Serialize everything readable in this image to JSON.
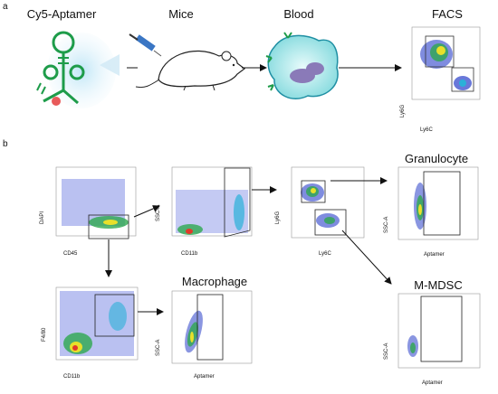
{
  "panel_a": {
    "letter": "a",
    "steps": [
      "Cy5-Aptamer",
      "Mice",
      "Blood",
      "FACS"
    ],
    "facs_axes": {
      "y": "Ly6G",
      "x": "Ly6C"
    }
  },
  "panel_b": {
    "letter": "b",
    "plot1": {
      "y": "DAPI",
      "x": "CD45"
    },
    "plot2": {
      "y": "SSC-A",
      "x": "CD11b"
    },
    "plot3": {
      "y": "Ly6G",
      "x": "Ly6C"
    },
    "plot4": {
      "title": "Granulocyte",
      "y": "SSC-A",
      "x": "Aptamer"
    },
    "plot5": {
      "title": "M-MDSC",
      "y": "SSC-A",
      "x": "Aptamer"
    },
    "plot6": {
      "y": "F4/80",
      "x": "CD11b"
    },
    "plot7": {
      "title": "Macrophage",
      "y": "SSC-A",
      "x": "Aptamer"
    }
  },
  "colors": {
    "aptamer": "#1e9c4a",
    "cell": "#3cc3c8",
    "nucleus": "#8a7ab8",
    "dot": "#e85a5a"
  }
}
